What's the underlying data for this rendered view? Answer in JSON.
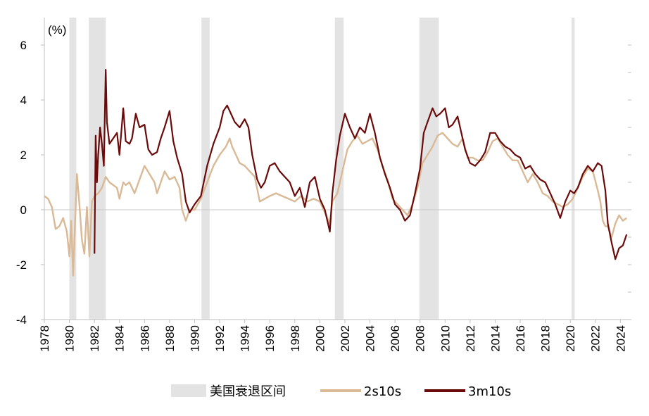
{
  "chart_data": {
    "type": "line",
    "title": "",
    "xlabel": "",
    "ylabel": "(%)",
    "xlim": [
      1978,
      2024.6
    ],
    "ylim": [
      -4,
      7
    ],
    "y_ticks": [
      -4,
      -2,
      0,
      2,
      4,
      6
    ],
    "x_ticks": [
      1978,
      1980,
      1982,
      1984,
      1986,
      1988,
      1990,
      1992,
      1994,
      1996,
      1998,
      2000,
      2002,
      2004,
      2006,
      2008,
      2010,
      2012,
      2014,
      2016,
      2018,
      2020,
      2022,
      2024
    ],
    "grid": false,
    "legend_position": "bottom",
    "recessions": [
      {
        "start": 1980.0,
        "end": 1980.55
      },
      {
        "start": 1981.55,
        "end": 1982.9
      },
      {
        "start": 1990.55,
        "end": 1991.2
      },
      {
        "start": 2001.2,
        "end": 2001.9
      },
      {
        "start": 2007.95,
        "end": 2009.5
      },
      {
        "start": 2020.1,
        "end": 2020.35
      }
    ],
    "legend": {
      "recession_label": "美国衰退区间"
    },
    "series": [
      {
        "name": "2s10s",
        "color": "#d9b996",
        "x": [
          1978.0,
          1978.3,
          1978.6,
          1978.9,
          1979.2,
          1979.5,
          1979.8,
          1980.0,
          1980.15,
          1980.3,
          1980.45,
          1980.6,
          1980.8,
          1981.0,
          1981.2,
          1981.4,
          1981.6,
          1981.8,
          1982.0,
          1982.3,
          1982.6,
          1982.9,
          1983.2,
          1983.5,
          1983.8,
          1984.0,
          1984.3,
          1984.5,
          1984.8,
          1985.2,
          1985.6,
          1986.0,
          1986.4,
          1986.8,
          1987.0,
          1987.3,
          1987.6,
          1988.0,
          1988.4,
          1988.8,
          1989.0,
          1989.3,
          1989.6,
          1990.0,
          1990.5,
          1991.0,
          1991.5,
          1992.0,
          1992.5,
          1992.8,
          1993.0,
          1993.3,
          1993.6,
          1994.0,
          1994.4,
          1994.8,
          1995.2,
          1995.6,
          1996.0,
          1996.5,
          1997.0,
          1997.5,
          1998.0,
          1998.5,
          1999.0,
          1999.5,
          2000.0,
          2000.4,
          2000.8,
          2001.0,
          2001.4,
          2001.8,
          2002.2,
          2002.6,
          2003.0,
          2003.4,
          2003.8,
          2004.2,
          2004.6,
          2005.0,
          2005.4,
          2005.8,
          2006.2,
          2006.6,
          2007.0,
          2007.4,
          2007.8,
          2008.2,
          2008.6,
          2009.0,
          2009.4,
          2009.8,
          2010.2,
          2010.6,
          2011.0,
          2011.4,
          2011.8,
          2012.2,
          2012.6,
          2013.0,
          2013.4,
          2013.8,
          2014.2,
          2014.6,
          2015.0,
          2015.4,
          2015.8,
          2016.2,
          2016.6,
          2017.0,
          2017.4,
          2017.8,
          2018.2,
          2018.6,
          2019.0,
          2019.4,
          2019.8,
          2020.2,
          2020.6,
          2021.0,
          2021.4,
          2021.8,
          2022.2,
          2022.4,
          2022.6,
          2022.8,
          2023.0,
          2023.3,
          2023.6,
          2023.9,
          2024.2,
          2024.5
        ],
        "values": [
          0.5,
          0.4,
          0.1,
          -0.7,
          -0.6,
          -0.3,
          -0.8,
          -1.7,
          -0.4,
          -2.4,
          -0.5,
          1.3,
          0.2,
          -1.1,
          -1.6,
          0.1,
          -1.7,
          0.3,
          0.5,
          0.6,
          0.8,
          1.2,
          1.0,
          0.9,
          0.8,
          0.4,
          1.0,
          0.9,
          1.0,
          0.6,
          1.1,
          1.6,
          1.3,
          1.0,
          0.6,
          1.0,
          1.4,
          1.1,
          1.2,
          0.8,
          0.0,
          -0.4,
          0.0,
          0.0,
          0.4,
          1.0,
          1.6,
          2.0,
          2.3,
          2.6,
          2.3,
          2.0,
          1.7,
          1.6,
          1.4,
          1.2,
          0.3,
          0.4,
          0.5,
          0.6,
          0.5,
          0.4,
          0.3,
          0.5,
          0.3,
          0.4,
          0.3,
          -0.1,
          -0.5,
          0.3,
          0.6,
          1.4,
          2.2,
          2.5,
          2.7,
          2.4,
          2.5,
          2.6,
          2.2,
          1.6,
          1.1,
          0.4,
          0.2,
          0.0,
          -0.2,
          0.2,
          0.8,
          1.7,
          2.0,
          2.3,
          2.7,
          2.8,
          2.6,
          2.4,
          2.3,
          2.6,
          1.9,
          1.9,
          1.8,
          1.8,
          2.1,
          2.5,
          2.6,
          2.3,
          2.0,
          1.8,
          1.8,
          1.4,
          1.0,
          1.3,
          1.0,
          0.6,
          0.5,
          0.3,
          0.2,
          0.1,
          0.2,
          0.4,
          0.8,
          1.2,
          1.5,
          1.4,
          0.7,
          0.3,
          -0.4,
          -0.6,
          -0.6,
          -1.0,
          -0.5,
          -0.2,
          -0.4,
          -0.3
        ]
      },
      {
        "name": "3m10s",
        "color": "#6b0a0a",
        "x": [
          1982.0,
          1982.1,
          1982.2,
          1982.3,
          1982.45,
          1982.6,
          1982.75,
          1982.9,
          1983.0,
          1983.2,
          1983.5,
          1983.8,
          1984.0,
          1984.3,
          1984.5,
          1984.8,
          1985.0,
          1985.3,
          1985.6,
          1986.0,
          1986.3,
          1986.6,
          1987.0,
          1987.3,
          1987.6,
          1988.0,
          1988.3,
          1988.6,
          1989.0,
          1989.3,
          1989.6,
          1990.0,
          1990.5,
          1991.0,
          1991.5,
          1992.0,
          1992.3,
          1992.6,
          1992.9,
          1993.2,
          1993.6,
          1994.0,
          1994.3,
          1994.6,
          1995.0,
          1995.3,
          1995.6,
          1996.0,
          1996.4,
          1996.8,
          1997.2,
          1997.6,
          1998.0,
          1998.4,
          1998.8,
          1999.2,
          1999.6,
          2000.0,
          2000.4,
          2000.8,
          2001.0,
          2001.3,
          2001.6,
          2002.0,
          2002.4,
          2002.8,
          2003.2,
          2003.6,
          2004.0,
          2004.4,
          2004.8,
          2005.2,
          2005.6,
          2006.0,
          2006.4,
          2006.8,
          2007.2,
          2007.6,
          2008.0,
          2008.3,
          2008.6,
          2009.0,
          2009.3,
          2009.6,
          2010.0,
          2010.3,
          2010.6,
          2011.0,
          2011.3,
          2011.6,
          2012.0,
          2012.4,
          2012.8,
          2013.2,
          2013.6,
          2014.0,
          2014.4,
          2014.8,
          2015.2,
          2015.6,
          2016.0,
          2016.4,
          2016.8,
          2017.2,
          2017.6,
          2018.0,
          2018.4,
          2018.8,
          2019.2,
          2019.6,
          2020.0,
          2020.3,
          2020.6,
          2021.0,
          2021.4,
          2021.8,
          2022.2,
          2022.5,
          2022.8,
          2023.0,
          2023.3,
          2023.6,
          2023.9,
          2024.2,
          2024.5
        ],
        "values": [
          -1.6,
          2.7,
          1.0,
          2.0,
          3.0,
          2.4,
          1.6,
          5.1,
          3.2,
          2.4,
          2.6,
          2.8,
          2.0,
          3.7,
          2.5,
          2.4,
          2.6,
          3.5,
          3.0,
          3.1,
          2.2,
          2.0,
          2.1,
          2.6,
          3.0,
          3.6,
          2.5,
          1.9,
          1.3,
          0.3,
          -0.1,
          0.2,
          0.5,
          1.6,
          2.4,
          3.0,
          3.6,
          3.8,
          3.5,
          3.2,
          3.0,
          3.3,
          3.0,
          2.0,
          1.1,
          0.8,
          1.0,
          1.6,
          1.7,
          1.4,
          1.2,
          1.0,
          0.5,
          0.8,
          0.1,
          1.0,
          1.2,
          0.4,
          0.0,
          -0.8,
          0.6,
          1.8,
          2.7,
          3.5,
          3.0,
          2.6,
          3.0,
          2.8,
          3.5,
          2.8,
          1.9,
          1.3,
          0.8,
          0.2,
          0.0,
          -0.4,
          -0.2,
          0.6,
          1.5,
          2.8,
          3.2,
          3.7,
          3.4,
          3.5,
          3.7,
          3.0,
          3.1,
          3.4,
          2.8,
          2.2,
          1.7,
          1.6,
          1.8,
          2.1,
          2.8,
          2.8,
          2.5,
          2.3,
          2.2,
          2.0,
          1.9,
          1.5,
          1.6,
          1.3,
          1.1,
          1.0,
          0.6,
          0.2,
          -0.3,
          0.3,
          0.7,
          0.6,
          0.8,
          1.3,
          1.6,
          1.4,
          1.7,
          1.6,
          0.7,
          -0.5,
          -1.2,
          -1.8,
          -1.4,
          -1.3,
          -0.9
        ]
      }
    ]
  }
}
